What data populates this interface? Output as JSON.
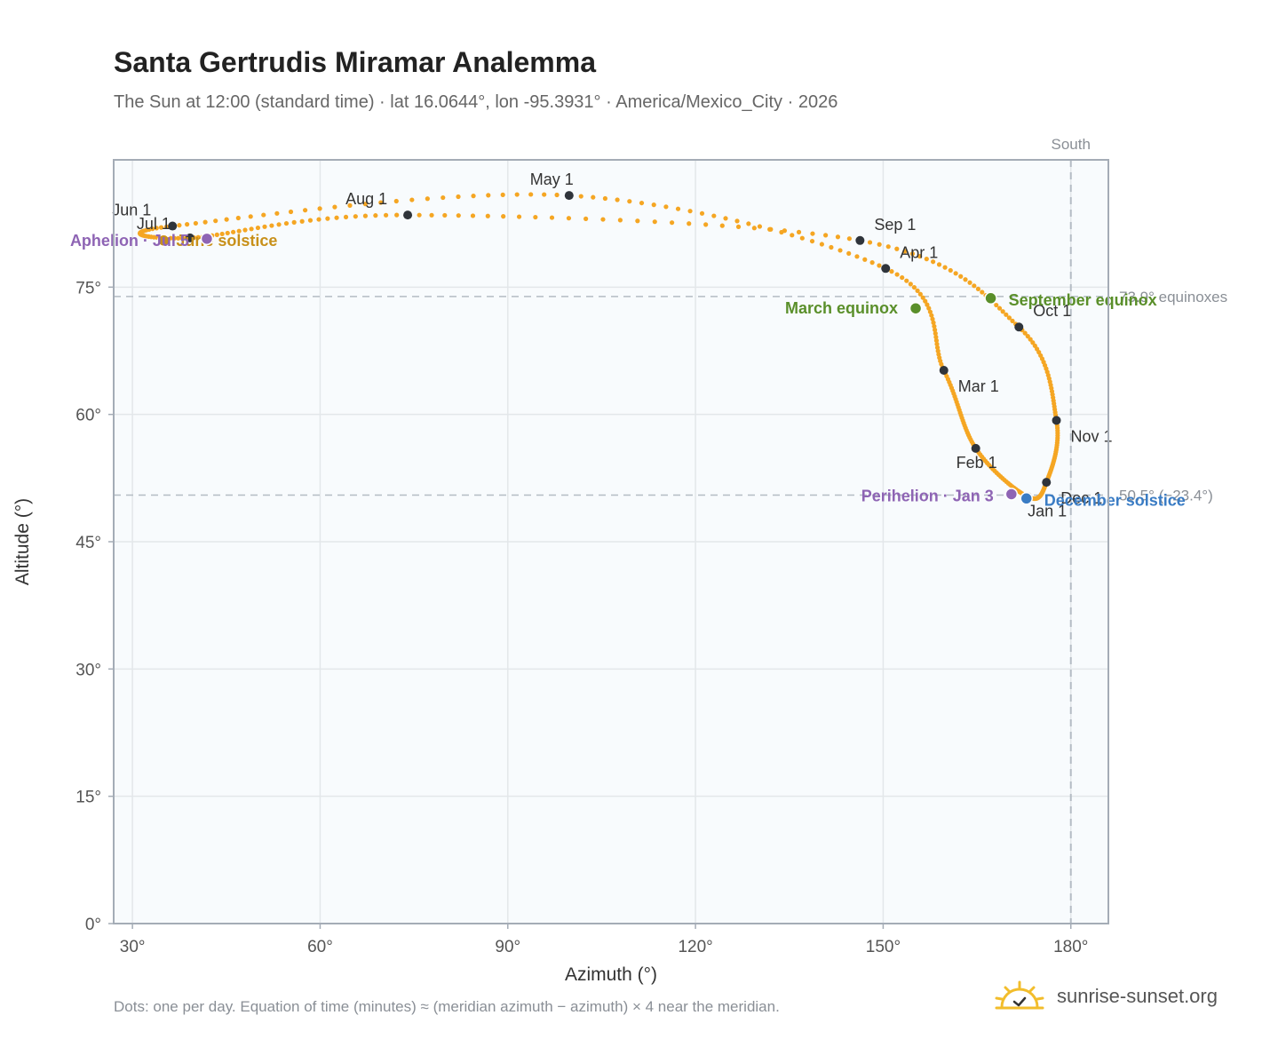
{
  "title": "Santa Gertrudis Miramar Analemma",
  "subtitle": "The Sun at 12:00 (standard time) · lat 16.0644°, lon -95.3931° · America/Mexico_City · 2026",
  "footnote": "Dots: one per day. Equation of time (minutes) ≈ (meridian azimuth − azimuth) × 4 near the meridian.",
  "brand": "sunrise-sunset.org",
  "colors": {
    "analemma": "#f5a623",
    "month_dot": "#2f343b",
    "equinox": "#5a8f2a",
    "solstice_june": "#c8901a",
    "solstice_dec": "#3a7cc4",
    "apsis": "#8e64b4",
    "plot_bg": "#f8fbfd",
    "grid": "#e3e7ea",
    "frame": "#a4acb6",
    "ref_line": "#b4bcc4",
    "brand_sun": "#f2bd2c"
  },
  "chart_data": {
    "type": "scatter",
    "xlabel": "Azimuth (°)",
    "ylabel": "Altitude (°)",
    "xlim": [
      27,
      186
    ],
    "ylim": [
      0,
      90
    ],
    "x_ticks": [
      30,
      60,
      90,
      120,
      150,
      180
    ],
    "x_tick_labels": [
      "30°",
      "60°",
      "90°",
      "120°",
      "150°",
      "180°"
    ],
    "y_ticks": [
      0,
      15,
      30,
      45,
      60,
      75
    ],
    "y_tick_labels": [
      "0°",
      "15°",
      "30°",
      "45°",
      "60°",
      "75°"
    ],
    "grid": true,
    "meridian": {
      "azimuth": 180,
      "label": "South"
    },
    "reference_lines": [
      {
        "altitude": 73.9,
        "label": "73.9° equinoxes"
      },
      {
        "altitude": 50.5,
        "label": "50.5° (−23.4°)"
      }
    ],
    "month_points": [
      {
        "label": "Jan 1",
        "azimuth": 173.1,
        "altitude": 50.3
      },
      {
        "label": "Feb 1",
        "azimuth": 164.8,
        "altitude": 56.0
      },
      {
        "label": "Mar 1",
        "azimuth": 159.7,
        "altitude": 65.2
      },
      {
        "label": "Apr 1",
        "azimuth": 150.4,
        "altitude": 77.2
      },
      {
        "label": "May 1",
        "azimuth": 99.8,
        "altitude": 85.8
      },
      {
        "label": "Jun 1",
        "azimuth": 36.4,
        "altitude": 82.2
      },
      {
        "label": "Jul 1",
        "azimuth": 39.2,
        "altitude": 80.8
      },
      {
        "label": "Aug 1",
        "azimuth": 74.0,
        "altitude": 83.5
      },
      {
        "label": "Sep 1",
        "azimuth": 146.3,
        "altitude": 80.5
      },
      {
        "label": "Oct 1",
        "azimuth": 171.7,
        "altitude": 70.3
      },
      {
        "label": "Nov 1",
        "azimuth": 177.7,
        "altitude": 59.3
      },
      {
        "label": "Dec 1",
        "azimuth": 176.1,
        "altitude": 52.0
      }
    ],
    "events": [
      {
        "label": "March equinox",
        "azimuth": 155.2,
        "altitude": 72.5,
        "color": "equinox"
      },
      {
        "label": "June solstice",
        "azimuth": 35.0,
        "altitude": 80.5,
        "color": "solstice_june"
      },
      {
        "label": "September equinox",
        "azimuth": 167.2,
        "altitude": 73.7,
        "color": "equinox"
      },
      {
        "label": "December solstice",
        "azimuth": 172.9,
        "altitude": 50.1,
        "color": "solstice_dec"
      },
      {
        "label": "Perihelion · Jan 3",
        "azimuth": 170.5,
        "altitude": 50.6,
        "color": "apsis"
      },
      {
        "label": "Aphelion · Jul 5",
        "azimuth": 41.9,
        "altitude": 80.7,
        "color": "apsis"
      }
    ]
  }
}
